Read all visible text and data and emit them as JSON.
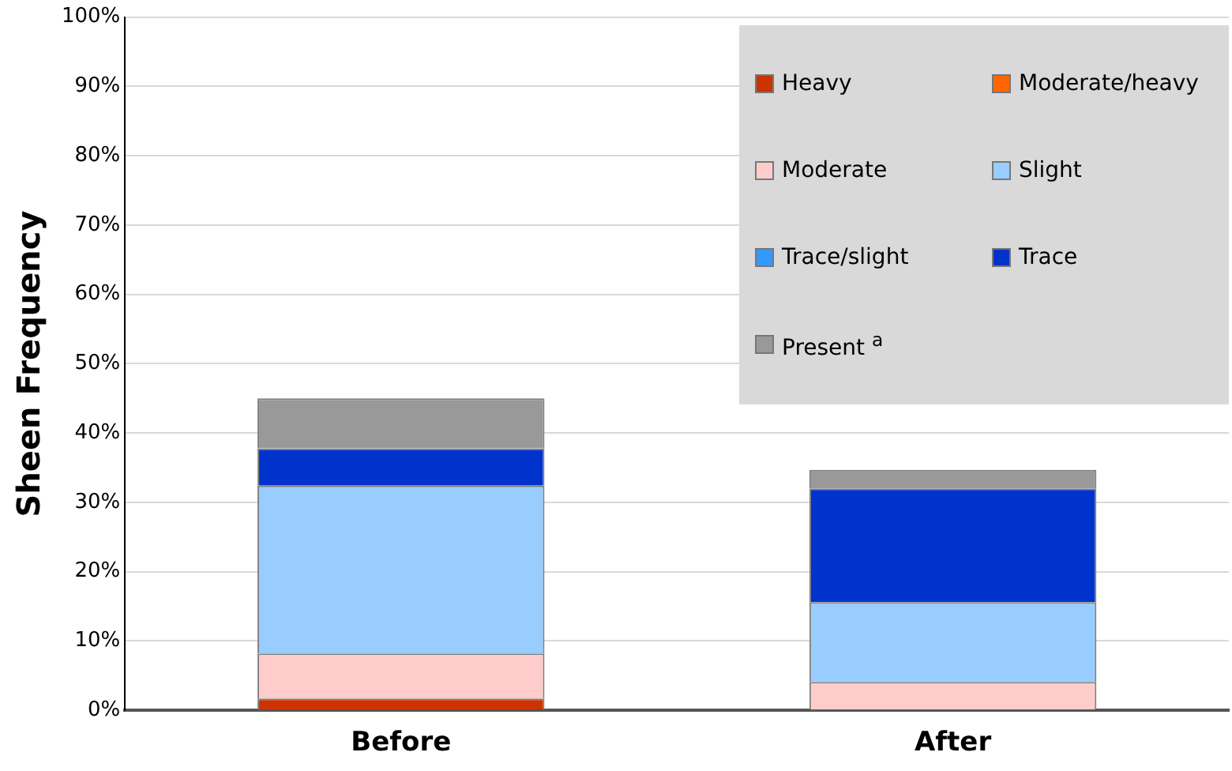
{
  "chart_data": {
    "type": "bar",
    "stacked": true,
    "ylabel": "Sheen Frequency",
    "categories": [
      "Before",
      "After"
    ],
    "series": [
      {
        "name": "Heavy",
        "color": "#cc3300",
        "values": [
          1.7,
          0
        ]
      },
      {
        "name": "Moderate/heavy",
        "color": "#ff6600",
        "values": [
          0,
          0
        ]
      },
      {
        "name": "Moderate",
        "color": "#ffcccc",
        "values": [
          6.5,
          4.1
        ]
      },
      {
        "name": "Slight",
        "color": "#99ccff",
        "values": [
          24.2,
          11.5
        ]
      },
      {
        "name": "Trace/slight",
        "color": "#3399ff",
        "values": [
          0,
          0
        ]
      },
      {
        "name": "Trace",
        "color": "#0033cc",
        "values": [
          5.4,
          16.4
        ]
      },
      {
        "name": "Present $^{a}$",
        "color": "#999999",
        "values": [
          7.2,
          2.7
        ]
      }
    ],
    "ylim": [
      0,
      100
    ],
    "yticks": [
      {
        "value": 0,
        "label": "0%"
      },
      {
        "value": 10,
        "label": "10%"
      },
      {
        "value": 20,
        "label": "20%"
      },
      {
        "value": 30,
        "label": "30%"
      },
      {
        "value": 40,
        "label": "40%"
      },
      {
        "value": 50,
        "label": "50%"
      },
      {
        "value": 60,
        "label": "60%"
      },
      {
        "value": 70,
        "label": "70%"
      },
      {
        "value": 80,
        "label": "80%"
      },
      {
        "value": 90,
        "label": "90%"
      },
      {
        "value": 100,
        "label": "100%"
      }
    ],
    "grid": "y",
    "legend": "top right"
  }
}
